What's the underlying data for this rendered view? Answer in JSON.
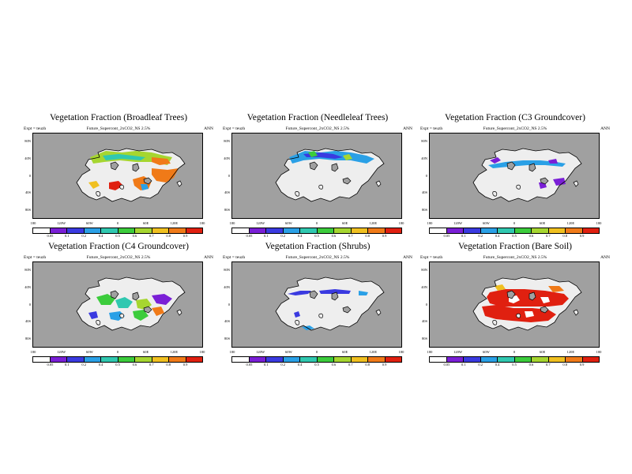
{
  "panels": [
    {
      "title": "Vegetation Fraction (Broadleaf Trees)",
      "expt": "Expt = teuzh",
      "run": "Future_Supercont_2xCO2_NS 2.5%",
      "season": "ANN",
      "pattern": "broadleaf"
    },
    {
      "title": "Vegetation Fraction (Needleleaf Trees)",
      "expt": "Expt = teuzh",
      "run": "Future_Supercont_2xCO2_NS 2.5%",
      "season": "ANN",
      "pattern": "needleleaf"
    },
    {
      "title": "Vegetation Fraction (C3 Groundcover)",
      "expt": "Expt = teuzh",
      "run": "Future_Supercont_2xCO2_NS 2.5%",
      "season": "ANN",
      "pattern": "c3"
    },
    {
      "title": "Vegetation Fraction (C4 Groundcover)",
      "expt": "Expt = teuzh",
      "run": "Future_Supercont_2xCO2_NS 2.5%",
      "season": "ANN",
      "pattern": "c4"
    },
    {
      "title": "Vegetation Fraction (Shrubs)",
      "expt": "Expt = teuzh",
      "run": "Future_Supercont_2xCO2_NS 2.5%",
      "season": "ANN",
      "pattern": "shrubs"
    },
    {
      "title": "Vegetation Fraction (Bare Soil)",
      "expt": "Expt = teuzh",
      "run": "Future_Supercont_2xCO2_NS 2.5%",
      "season": "ANN",
      "pattern": "bare"
    }
  ],
  "axes": {
    "x_ticks": [
      "180",
      "120W",
      "60W",
      "0",
      "60E",
      "120E",
      "180"
    ],
    "y_ticks": [
      "80N",
      "40N",
      "0",
      "40S",
      "80S"
    ]
  },
  "colorbar": {
    "labels": [
      "0.05",
      "0.1",
      "0.2",
      "0.4",
      "0.5",
      "0.6",
      "0.7",
      "0.8",
      "0.9"
    ],
    "colors": [
      "#ffffff",
      "#7a1fd6",
      "#3a3ae0",
      "#2aa0e6",
      "#30c8b0",
      "#3ccc3c",
      "#a6d630",
      "#f0c020",
      "#f07a18",
      "#e02010"
    ]
  },
  "map_colors": {
    "ocean": "#a0a0a0",
    "land": "#eeeeee",
    "coast": "#000000"
  }
}
